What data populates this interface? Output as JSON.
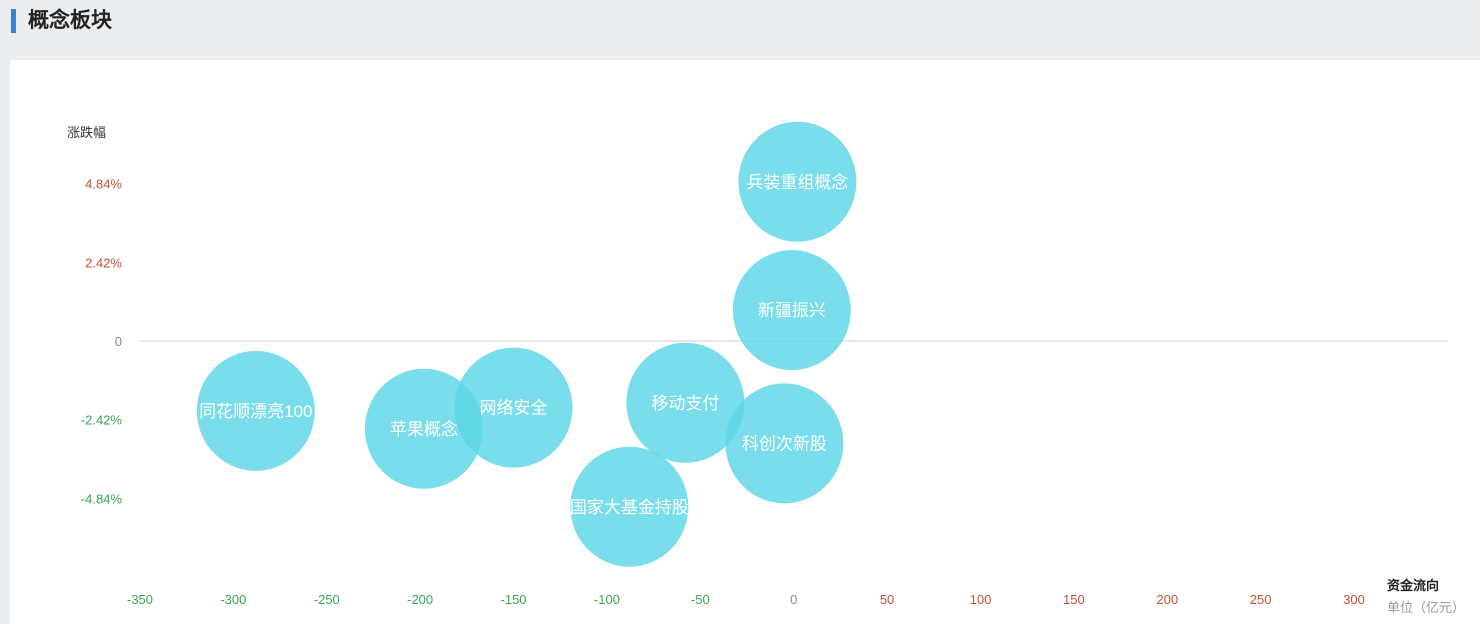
{
  "header": {
    "title": "概念板块"
  },
  "chart_data": {
    "type": "scatter",
    "xlabel": "资金流向",
    "xunit": "单位（亿元）",
    "ylabel": "涨跌幅",
    "xlim": [
      -350,
      350
    ],
    "ylim": [
      -7,
      7
    ],
    "x_ticks": [
      "-350",
      "-300",
      "-250",
      "-200",
      "-150",
      "-100",
      "-50",
      "0",
      "50",
      "100",
      "150",
      "200",
      "250",
      "300"
    ],
    "x_tick_values": [
      -350,
      -300,
      -250,
      -200,
      -150,
      -100,
      -50,
      0,
      50,
      100,
      150,
      200,
      250,
      300
    ],
    "y_ticks": [
      "4.84%",
      "2.42%",
      "0",
      "-2.42%",
      "-4.84%"
    ],
    "y_tick_values": [
      4.84,
      2.42,
      0,
      -2.42,
      -4.84
    ],
    "grid": false,
    "colors": {
      "bubble": "#5bd5e6",
      "positive": "#d04b3b",
      "negative": "#3aa35a",
      "zero": "#888888",
      "zero_line": "#e5e8ea"
    },
    "points": [
      {
        "name": "兵装重组概念",
        "x": 2,
        "y": 4.9
      },
      {
        "name": "新疆振兴",
        "x": -1,
        "y": 0.95
      },
      {
        "name": "科创次新股",
        "x": -5,
        "y": -3.15
      },
      {
        "name": "移动支付",
        "x": -58,
        "y": -1.9
      },
      {
        "name": "国家大基金持股",
        "x": -88,
        "y": -5.1
      },
      {
        "name": "网络安全",
        "x": -150,
        "y": -2.05
      },
      {
        "name": "苹果概念",
        "x": -198,
        "y": -2.7
      },
      {
        "name": "同花顺漂亮100",
        "x": -288,
        "y": -2.15
      }
    ]
  }
}
